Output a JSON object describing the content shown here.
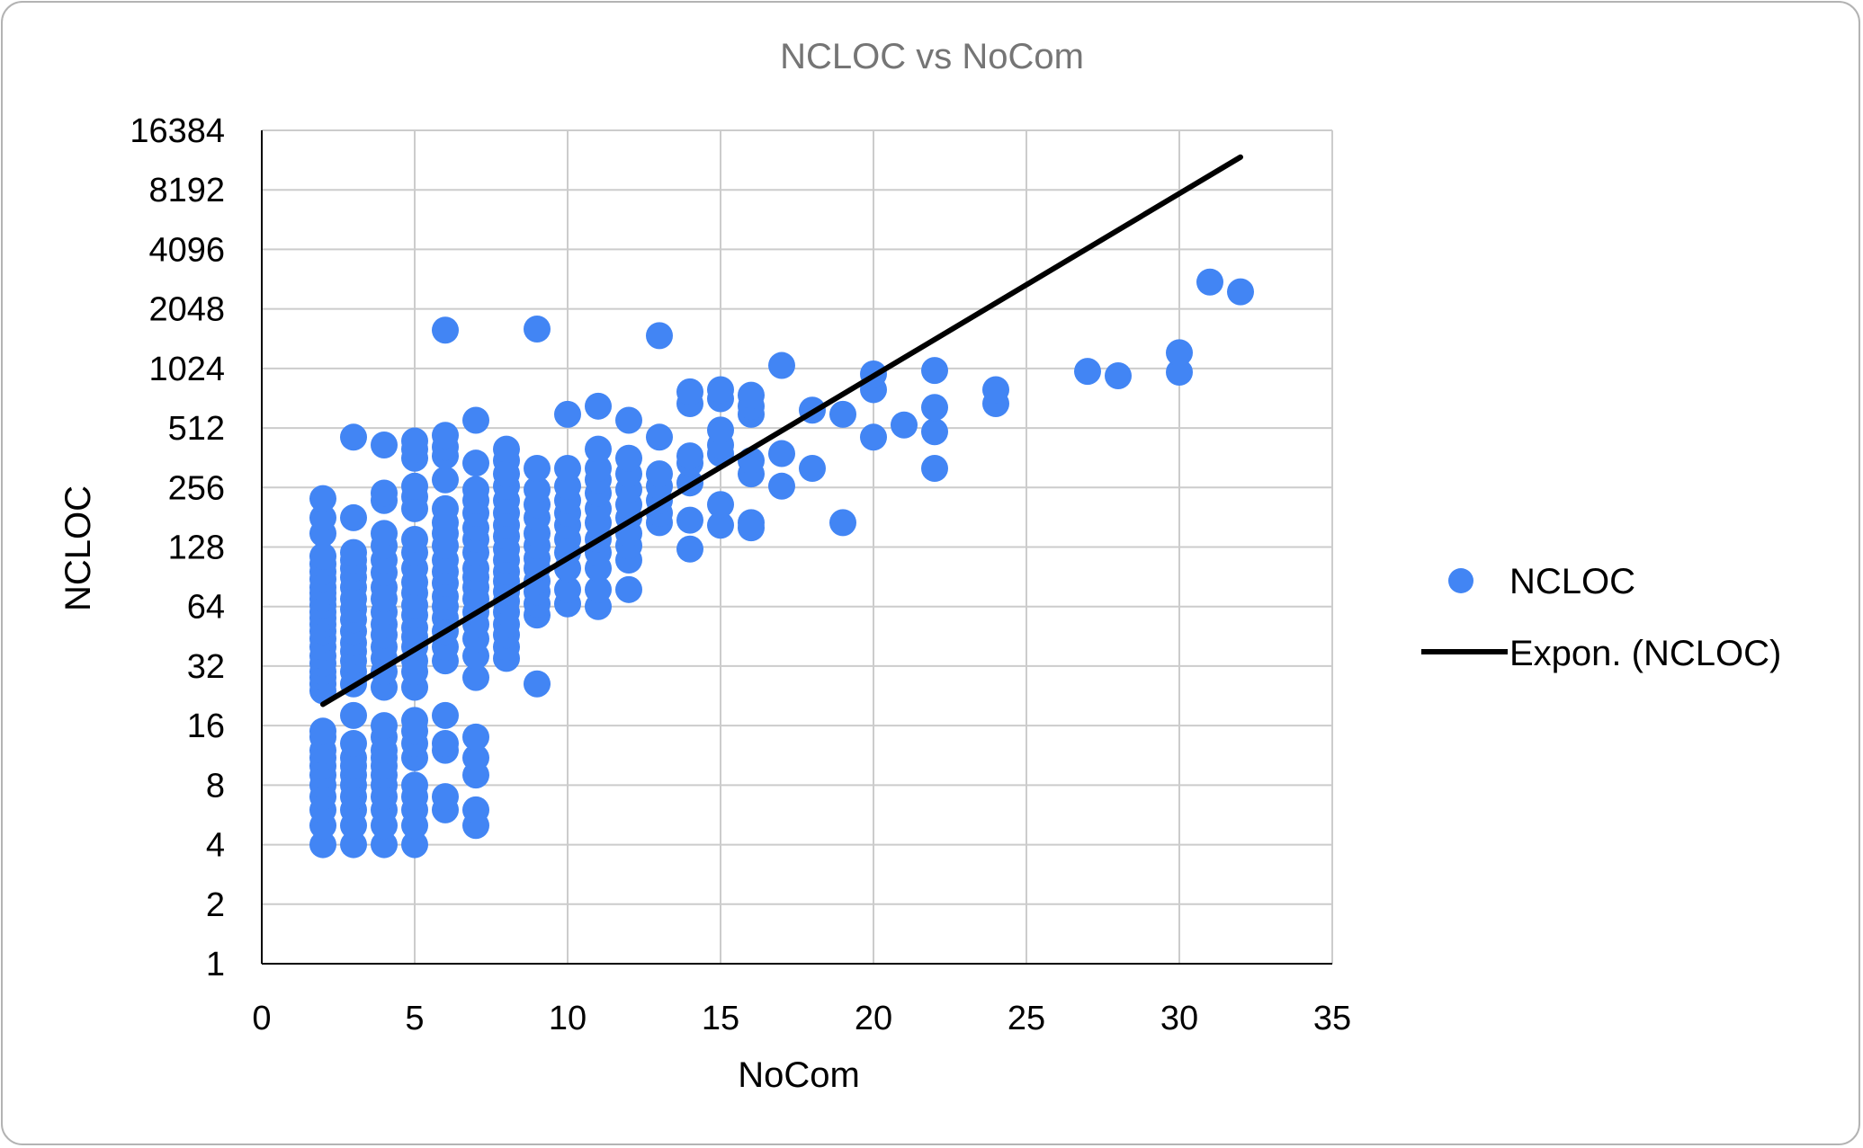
{
  "chart_data": {
    "type": "scatter",
    "title": "NCLOC vs NoCom",
    "xlabel": "NoCom",
    "ylabel": "NCLOC",
    "xlim": [
      0,
      35
    ],
    "ylim": [
      1,
      16384
    ],
    "yscale": "log2",
    "x_ticks": [
      0,
      5,
      10,
      15,
      20,
      25,
      30,
      35
    ],
    "y_ticks": [
      1,
      2,
      4,
      8,
      16,
      32,
      64,
      128,
      256,
      512,
      1024,
      2048,
      4096,
      8192,
      16384
    ],
    "grid": true,
    "legend_position": "right",
    "colors": {
      "points": "#4285f4",
      "trend": "#000000",
      "title": "#757575",
      "grid": "#cccccc"
    },
    "series": [
      {
        "name": "NCLOC",
        "kind": "scatter",
        "points": [
          [
            2,
            4
          ],
          [
            2,
            5
          ],
          [
            2,
            6
          ],
          [
            2,
            7
          ],
          [
            2,
            8
          ],
          [
            2,
            9
          ],
          [
            2,
            10
          ],
          [
            2,
            11
          ],
          [
            2,
            12
          ],
          [
            2,
            14
          ],
          [
            2,
            15
          ],
          [
            2,
            24
          ],
          [
            2,
            26
          ],
          [
            2,
            28
          ],
          [
            2,
            30
          ],
          [
            2,
            33
          ],
          [
            2,
            36
          ],
          [
            2,
            40
          ],
          [
            2,
            44
          ],
          [
            2,
            48
          ],
          [
            2,
            52
          ],
          [
            2,
            56
          ],
          [
            2,
            60
          ],
          [
            2,
            65
          ],
          [
            2,
            70
          ],
          [
            2,
            75
          ],
          [
            2,
            80
          ],
          [
            2,
            88
          ],
          [
            2,
            96
          ],
          [
            2,
            105
          ],
          [
            2,
            115
          ],
          [
            2,
            150
          ],
          [
            2,
            180
          ],
          [
            2,
            225
          ],
          [
            3,
            4
          ],
          [
            3,
            5
          ],
          [
            3,
            6
          ],
          [
            3,
            7
          ],
          [
            3,
            8
          ],
          [
            3,
            9
          ],
          [
            3,
            10
          ],
          [
            3,
            11
          ],
          [
            3,
            13
          ],
          [
            3,
            18
          ],
          [
            3,
            26
          ],
          [
            3,
            30
          ],
          [
            3,
            34
          ],
          [
            3,
            38
          ],
          [
            3,
            42
          ],
          [
            3,
            48
          ],
          [
            3,
            55
          ],
          [
            3,
            62
          ],
          [
            3,
            70
          ],
          [
            3,
            80
          ],
          [
            3,
            90
          ],
          [
            3,
            100
          ],
          [
            3,
            110
          ],
          [
            3,
            120
          ],
          [
            3,
            180
          ],
          [
            3,
            460
          ],
          [
            4,
            4
          ],
          [
            4,
            5
          ],
          [
            4,
            6
          ],
          [
            4,
            7
          ],
          [
            4,
            8
          ],
          [
            4,
            9
          ],
          [
            4,
            10
          ],
          [
            4,
            11
          ],
          [
            4,
            12
          ],
          [
            4,
            14
          ],
          [
            4,
            16
          ],
          [
            4,
            25
          ],
          [
            4,
            30
          ],
          [
            4,
            35
          ],
          [
            4,
            40
          ],
          [
            4,
            46
          ],
          [
            4,
            52
          ],
          [
            4,
            60
          ],
          [
            4,
            70
          ],
          [
            4,
            80
          ],
          [
            4,
            95
          ],
          [
            4,
            110
          ],
          [
            4,
            130
          ],
          [
            4,
            150
          ],
          [
            4,
            220
          ],
          [
            4,
            240
          ],
          [
            4,
            420
          ],
          [
            5,
            4
          ],
          [
            5,
            5
          ],
          [
            5,
            6
          ],
          [
            5,
            7
          ],
          [
            5,
            8
          ],
          [
            5,
            11
          ],
          [
            5,
            13
          ],
          [
            5,
            15
          ],
          [
            5,
            17
          ],
          [
            5,
            25
          ],
          [
            5,
            30
          ],
          [
            5,
            34
          ],
          [
            5,
            40
          ],
          [
            5,
            45
          ],
          [
            5,
            50
          ],
          [
            5,
            58
          ],
          [
            5,
            65
          ],
          [
            5,
            75
          ],
          [
            5,
            85
          ],
          [
            5,
            100
          ],
          [
            5,
            120
          ],
          [
            5,
            140
          ],
          [
            5,
            200
          ],
          [
            5,
            230
          ],
          [
            5,
            260
          ],
          [
            5,
            360
          ],
          [
            5,
            400
          ],
          [
            5,
            440
          ],
          [
            6,
            6
          ],
          [
            6,
            7
          ],
          [
            6,
            12
          ],
          [
            6,
            13
          ],
          [
            6,
            18
          ],
          [
            6,
            34
          ],
          [
            6,
            40
          ],
          [
            6,
            48
          ],
          [
            6,
            56
          ],
          [
            6,
            64
          ],
          [
            6,
            72
          ],
          [
            6,
            84
          ],
          [
            6,
            96
          ],
          [
            6,
            110
          ],
          [
            6,
            130
          ],
          [
            6,
            150
          ],
          [
            6,
            170
          ],
          [
            6,
            200
          ],
          [
            6,
            280
          ],
          [
            6,
            370
          ],
          [
            6,
            410
          ],
          [
            6,
            470
          ],
          [
            6,
            1600
          ],
          [
            7,
            5
          ],
          [
            7,
            6
          ],
          [
            7,
            9
          ],
          [
            7,
            11
          ],
          [
            7,
            14
          ],
          [
            7,
            28
          ],
          [
            7,
            36
          ],
          [
            7,
            44
          ],
          [
            7,
            52
          ],
          [
            7,
            60
          ],
          [
            7,
            70
          ],
          [
            7,
            80
          ],
          [
            7,
            90
          ],
          [
            7,
            100
          ],
          [
            7,
            120
          ],
          [
            7,
            140
          ],
          [
            7,
            160
          ],
          [
            7,
            190
          ],
          [
            7,
            220
          ],
          [
            7,
            250
          ],
          [
            7,
            340
          ],
          [
            7,
            560
          ],
          [
            8,
            35
          ],
          [
            8,
            40
          ],
          [
            8,
            46
          ],
          [
            8,
            52
          ],
          [
            8,
            60
          ],
          [
            8,
            68
          ],
          [
            8,
            76
          ],
          [
            8,
            86
          ],
          [
            8,
            96
          ],
          [
            8,
            110
          ],
          [
            8,
            125
          ],
          [
            8,
            145
          ],
          [
            8,
            165
          ],
          [
            8,
            190
          ],
          [
            8,
            220
          ],
          [
            8,
            260
          ],
          [
            8,
            300
          ],
          [
            8,
            350
          ],
          [
            8,
            400
          ],
          [
            9,
            26
          ],
          [
            9,
            58
          ],
          [
            9,
            66
          ],
          [
            9,
            76
          ],
          [
            9,
            86
          ],
          [
            9,
            100
          ],
          [
            9,
            112
          ],
          [
            9,
            130
          ],
          [
            9,
            150
          ],
          [
            9,
            180
          ],
          [
            9,
            210
          ],
          [
            9,
            250
          ],
          [
            9,
            320
          ],
          [
            9,
            1620
          ],
          [
            10,
            66
          ],
          [
            10,
            78
          ],
          [
            10,
            100
          ],
          [
            10,
            120
          ],
          [
            10,
            140
          ],
          [
            10,
            165
          ],
          [
            10,
            190
          ],
          [
            10,
            220
          ],
          [
            10,
            260
          ],
          [
            10,
            320
          ],
          [
            10,
            600
          ],
          [
            11,
            64
          ],
          [
            11,
            78
          ],
          [
            11,
            100
          ],
          [
            11,
            120
          ],
          [
            11,
            140
          ],
          [
            11,
            170
          ],
          [
            11,
            200
          ],
          [
            11,
            240
          ],
          [
            11,
            280
          ],
          [
            11,
            320
          ],
          [
            11,
            400
          ],
          [
            11,
            660
          ],
          [
            12,
            78
          ],
          [
            12,
            110
          ],
          [
            12,
            130
          ],
          [
            12,
            150
          ],
          [
            12,
            180
          ],
          [
            12,
            210
          ],
          [
            12,
            250
          ],
          [
            12,
            300
          ],
          [
            12,
            360
          ],
          [
            12,
            560
          ],
          [
            13,
            170
          ],
          [
            13,
            190
          ],
          [
            13,
            220
          ],
          [
            13,
            260
          ],
          [
            13,
            300
          ],
          [
            13,
            460
          ],
          [
            13,
            1500
          ],
          [
            14,
            125
          ],
          [
            14,
            175
          ],
          [
            14,
            270
          ],
          [
            14,
            340
          ],
          [
            14,
            370
          ],
          [
            14,
            680
          ],
          [
            14,
            780
          ],
          [
            15,
            165
          ],
          [
            15,
            210
          ],
          [
            15,
            380
          ],
          [
            15,
            420
          ],
          [
            15,
            500
          ],
          [
            15,
            720
          ],
          [
            15,
            800
          ],
          [
            16,
            160
          ],
          [
            16,
            170
          ],
          [
            16,
            300
          ],
          [
            16,
            350
          ],
          [
            16,
            600
          ],
          [
            16,
            660
          ],
          [
            16,
            750
          ],
          [
            17,
            260
          ],
          [
            17,
            380
          ],
          [
            17,
            1060
          ],
          [
            18,
            320
          ],
          [
            18,
            630
          ],
          [
            19,
            170
          ],
          [
            19,
            600
          ],
          [
            20,
            460
          ],
          [
            20,
            800
          ],
          [
            20,
            960
          ],
          [
            21,
            530
          ],
          [
            22,
            320
          ],
          [
            22,
            490
          ],
          [
            22,
            650
          ],
          [
            22,
            1000
          ],
          [
            24,
            680
          ],
          [
            24,
            800
          ],
          [
            27,
            990
          ],
          [
            28,
            940
          ],
          [
            30,
            980
          ],
          [
            30,
            1230
          ],
          [
            31,
            2800
          ],
          [
            32,
            2500
          ]
        ]
      },
      {
        "name": "Expon. (NCLOC)",
        "kind": "trendline",
        "points": [
          [
            2,
            20.5
          ],
          [
            32,
            12000
          ]
        ]
      }
    ]
  }
}
